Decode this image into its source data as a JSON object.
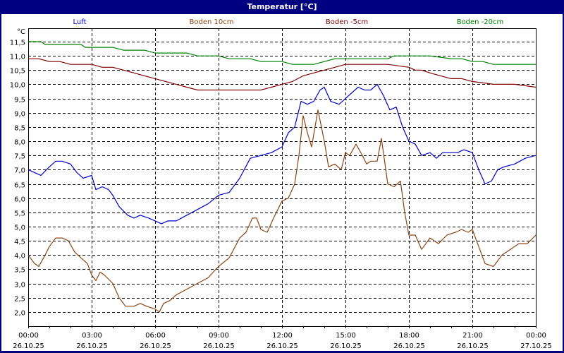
{
  "window": {
    "title": "Temperatur [°C]"
  },
  "chart_data": {
    "type": "line",
    "title": "Temperatur [°C]",
    "ylabel": "°C",
    "xlabel": "",
    "ylim": [
      1.5,
      12.0
    ],
    "yticks": [
      2.0,
      2.5,
      3.0,
      3.5,
      4.0,
      4.5,
      5.0,
      5.5,
      6.0,
      6.5,
      7.0,
      7.5,
      8.0,
      8.5,
      9.0,
      9.5,
      10.0,
      10.5,
      11.0,
      11.5
    ],
    "ytick_labels": [
      "2,0",
      "2,5",
      "3,0",
      "3,5",
      "4,0",
      "4,5",
      "5,0",
      "5,5",
      "6,0",
      "6,5",
      "7,0",
      "7,5",
      "8,0",
      "8,5",
      "9,0",
      "9,5",
      "10,0",
      "10,5",
      "11,0",
      "11,5"
    ],
    "xticks": [
      {
        "time": "00:00",
        "date": "26.10.25"
      },
      {
        "time": "03:00",
        "date": "26.10.25"
      },
      {
        "time": "06:00",
        "date": "26.10.25"
      },
      {
        "time": "09:00",
        "date": "26.10.25"
      },
      {
        "time": "12:00",
        "date": "26.10.25"
      },
      {
        "time": "15:00",
        "date": "26.10.25"
      },
      {
        "time": "18:00",
        "date": "26.10.25"
      },
      {
        "time": "21:00",
        "date": "26.10.25"
      },
      {
        "time": "00:00",
        "date": "27.10.25"
      }
    ],
    "xlim_hours": [
      0,
      24
    ],
    "grid": true,
    "legend_position": "top",
    "series": [
      {
        "name": "Luft",
        "color": "#0000CC",
        "x": [
          0,
          0.3,
          0.6,
          1.0,
          1.3,
          1.6,
          2.0,
          2.3,
          2.6,
          3.0,
          3.2,
          3.5,
          3.8,
          4.0,
          4.3,
          4.7,
          5.0,
          5.3,
          5.7,
          6.0,
          6.3,
          6.6,
          7.0,
          7.5,
          8.0,
          8.5,
          9.0,
          9.5,
          10.0,
          10.5,
          11.0,
          11.5,
          12.0,
          12.3,
          12.6,
          12.9,
          13.2,
          13.5,
          13.8,
          14.0,
          14.3,
          14.7,
          15.0,
          15.3,
          15.6,
          15.9,
          16.2,
          16.5,
          16.8,
          17.1,
          17.4,
          17.7,
          18.0,
          18.3,
          18.6,
          19.0,
          19.3,
          19.6,
          20.0,
          20.3,
          20.6,
          21.0,
          21.3,
          21.6,
          21.9,
          22.2,
          22.5,
          23.0,
          23.5,
          24.0
        ],
        "values": [
          7.0,
          6.9,
          6.8,
          7.1,
          7.3,
          7.3,
          7.2,
          6.9,
          6.7,
          6.8,
          6.3,
          6.4,
          6.3,
          6.1,
          5.7,
          5.4,
          5.3,
          5.4,
          5.3,
          5.2,
          5.1,
          5.2,
          5.2,
          5.4,
          5.6,
          5.8,
          6.1,
          6.2,
          6.7,
          7.4,
          7.5,
          7.6,
          7.8,
          8.3,
          8.5,
          9.4,
          9.3,
          9.4,
          9.8,
          9.9,
          9.4,
          9.3,
          9.5,
          9.7,
          9.9,
          9.8,
          9.8,
          10.0,
          9.6,
          9.1,
          9.2,
          8.5,
          8.0,
          7.9,
          7.5,
          7.6,
          7.4,
          7.6,
          7.6,
          7.6,
          7.7,
          7.6,
          7.0,
          6.5,
          6.6,
          7.0,
          7.1,
          7.2,
          7.4,
          7.5
        ]
      },
      {
        "name": "Boden 10cm",
        "color": "#8B4513",
        "x": [
          0,
          0.3,
          0.5,
          0.8,
          1.0,
          1.3,
          1.6,
          1.9,
          2.2,
          2.5,
          2.8,
          3.0,
          3.2,
          3.4,
          3.6,
          4.0,
          4.3,
          4.6,
          5.0,
          5.3,
          5.6,
          6.0,
          6.2,
          6.4,
          6.7,
          7.0,
          7.5,
          8.0,
          8.5,
          9.0,
          9.5,
          10.0,
          10.3,
          10.6,
          10.8,
          11.0,
          11.3,
          11.6,
          12.0,
          12.3,
          12.6,
          12.8,
          13.0,
          13.2,
          13.4,
          13.7,
          14.0,
          14.2,
          14.5,
          14.8,
          15.0,
          15.2,
          15.5,
          15.8,
          16.0,
          16.2,
          16.5,
          16.7,
          17.0,
          17.3,
          17.6,
          17.8,
          18.0,
          18.3,
          18.6,
          19.0,
          19.4,
          19.8,
          20.2,
          20.5,
          20.8,
          21.0,
          21.3,
          21.6,
          22.0,
          22.4,
          22.8,
          23.2,
          23.6,
          24.0
        ],
        "values": [
          4.0,
          3.7,
          3.6,
          4.0,
          4.3,
          4.6,
          4.6,
          4.5,
          4.1,
          3.9,
          3.7,
          3.3,
          3.1,
          3.4,
          3.3,
          3.0,
          2.5,
          2.2,
          2.2,
          2.3,
          2.2,
          2.1,
          2.0,
          2.3,
          2.4,
          2.6,
          2.8,
          3.0,
          3.2,
          3.6,
          3.9,
          4.6,
          4.8,
          5.3,
          5.3,
          4.9,
          4.8,
          5.3,
          5.9,
          6.0,
          6.5,
          7.5,
          8.9,
          8.3,
          7.8,
          9.1,
          8.0,
          7.1,
          7.2,
          7.0,
          7.6,
          7.5,
          7.9,
          7.5,
          7.2,
          7.3,
          7.3,
          8.1,
          6.5,
          6.4,
          6.6,
          5.5,
          4.7,
          4.7,
          4.2,
          4.6,
          4.4,
          4.7,
          4.8,
          4.9,
          4.8,
          4.9,
          4.3,
          3.7,
          3.6,
          4.0,
          4.2,
          4.4,
          4.4,
          4.7
        ]
      },
      {
        "name": "Boden -5cm",
        "color": "#800000",
        "x": [
          0,
          0.5,
          1.0,
          1.5,
          2.0,
          3.0,
          3.5,
          4.0,
          4.5,
          5.0,
          5.5,
          6.0,
          6.5,
          7.0,
          7.5,
          8.0,
          9.0,
          10.0,
          11.0,
          11.5,
          12.0,
          12.5,
          13.0,
          13.5,
          14.0,
          14.5,
          15.0,
          16.0,
          17.0,
          18.0,
          18.3,
          18.6,
          19.0,
          19.5,
          20.0,
          20.5,
          21.0,
          22.0,
          23.0,
          24.0
        ],
        "values": [
          10.9,
          10.9,
          10.8,
          10.8,
          10.7,
          10.7,
          10.6,
          10.6,
          10.5,
          10.4,
          10.3,
          10.2,
          10.1,
          10.0,
          9.9,
          9.8,
          9.8,
          9.8,
          9.8,
          9.9,
          10.0,
          10.1,
          10.3,
          10.4,
          10.5,
          10.6,
          10.7,
          10.7,
          10.7,
          10.6,
          10.5,
          10.5,
          10.4,
          10.3,
          10.2,
          10.2,
          10.1,
          10.0,
          10.0,
          9.9
        ]
      },
      {
        "name": "Boden -20cm",
        "color": "#008000",
        "x": [
          0,
          0.6,
          0.8,
          1.5,
          2.5,
          2.7,
          4.0,
          4.5,
          5.5,
          6.0,
          7.5,
          8.0,
          9.0,
          9.5,
          10.5,
          11.0,
          12.0,
          12.5,
          13.0,
          13.5,
          14.0,
          14.5,
          15.0,
          16.0,
          17.0,
          17.3,
          18.0,
          19.0,
          20.0,
          20.5,
          21.0,
          21.5,
          22.0,
          23.0,
          24.0
        ],
        "values": [
          11.5,
          11.5,
          11.4,
          11.4,
          11.4,
          11.3,
          11.3,
          11.2,
          11.2,
          11.1,
          11.1,
          11.0,
          11.0,
          10.9,
          10.9,
          10.8,
          10.8,
          10.7,
          10.7,
          10.7,
          10.8,
          10.9,
          10.9,
          10.9,
          10.9,
          11.0,
          11.0,
          11.0,
          10.9,
          10.9,
          10.8,
          10.8,
          10.7,
          10.7,
          10.7
        ]
      }
    ]
  }
}
